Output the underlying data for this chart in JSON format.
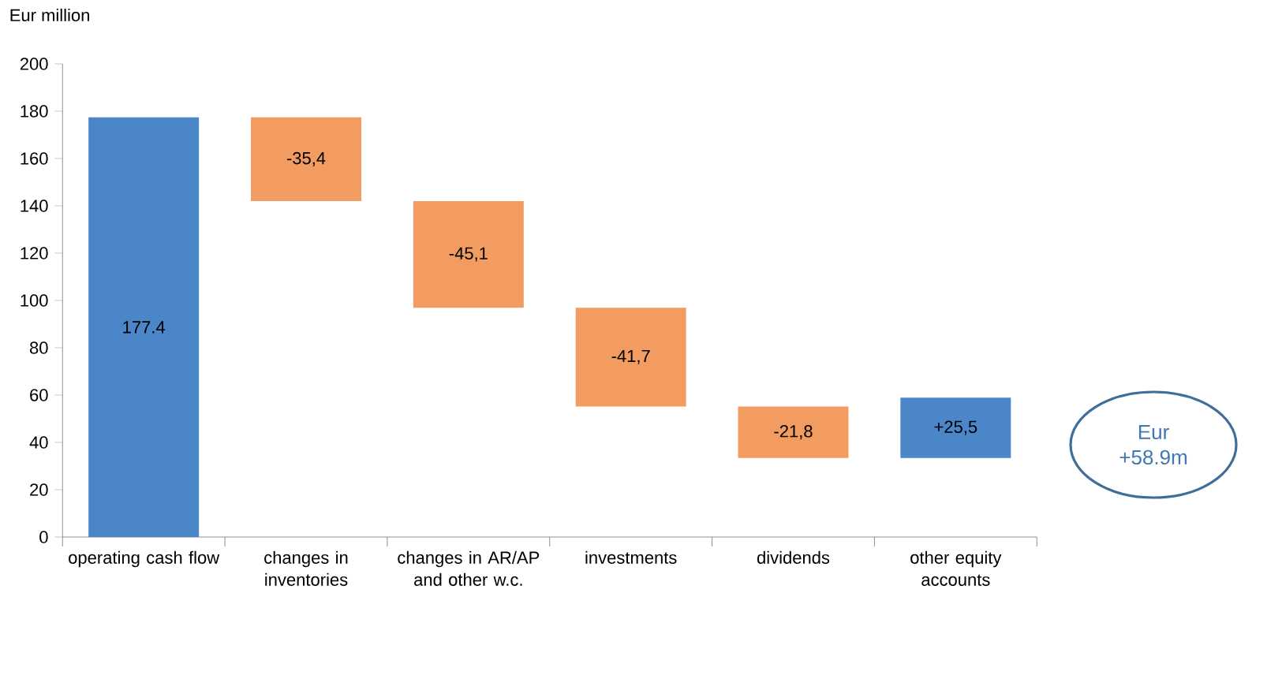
{
  "chart_data": {
    "type": "bar",
    "ylabel": "Eur million",
    "categories": [
      "operating cash flow",
      "changes in inventories",
      "changes in AR/AP and other w.c.",
      "investments",
      "dividends",
      "other equity accounts"
    ],
    "values": [
      177.4,
      -35.4,
      -45.1,
      -41.7,
      -21.8,
      25.5
    ],
    "base": [
      0,
      177.4,
      142.0,
      96.9,
      55.2,
      33.4
    ],
    "colors": [
      "#4a86c8",
      "#f39c62",
      "#f39c62",
      "#f39c62",
      "#f39c62",
      "#4a86c8"
    ],
    "value_labels": [
      "177.4",
      "-35,4",
      "-45,1",
      "-41,7",
      "-21,8",
      "+25,5"
    ],
    "ylim": [
      0,
      200
    ],
    "yticks": [
      0,
      20,
      40,
      60,
      80,
      100,
      120,
      140,
      160,
      180,
      200
    ],
    "annotations": [
      "Eur +58.9m"
    ]
  }
}
